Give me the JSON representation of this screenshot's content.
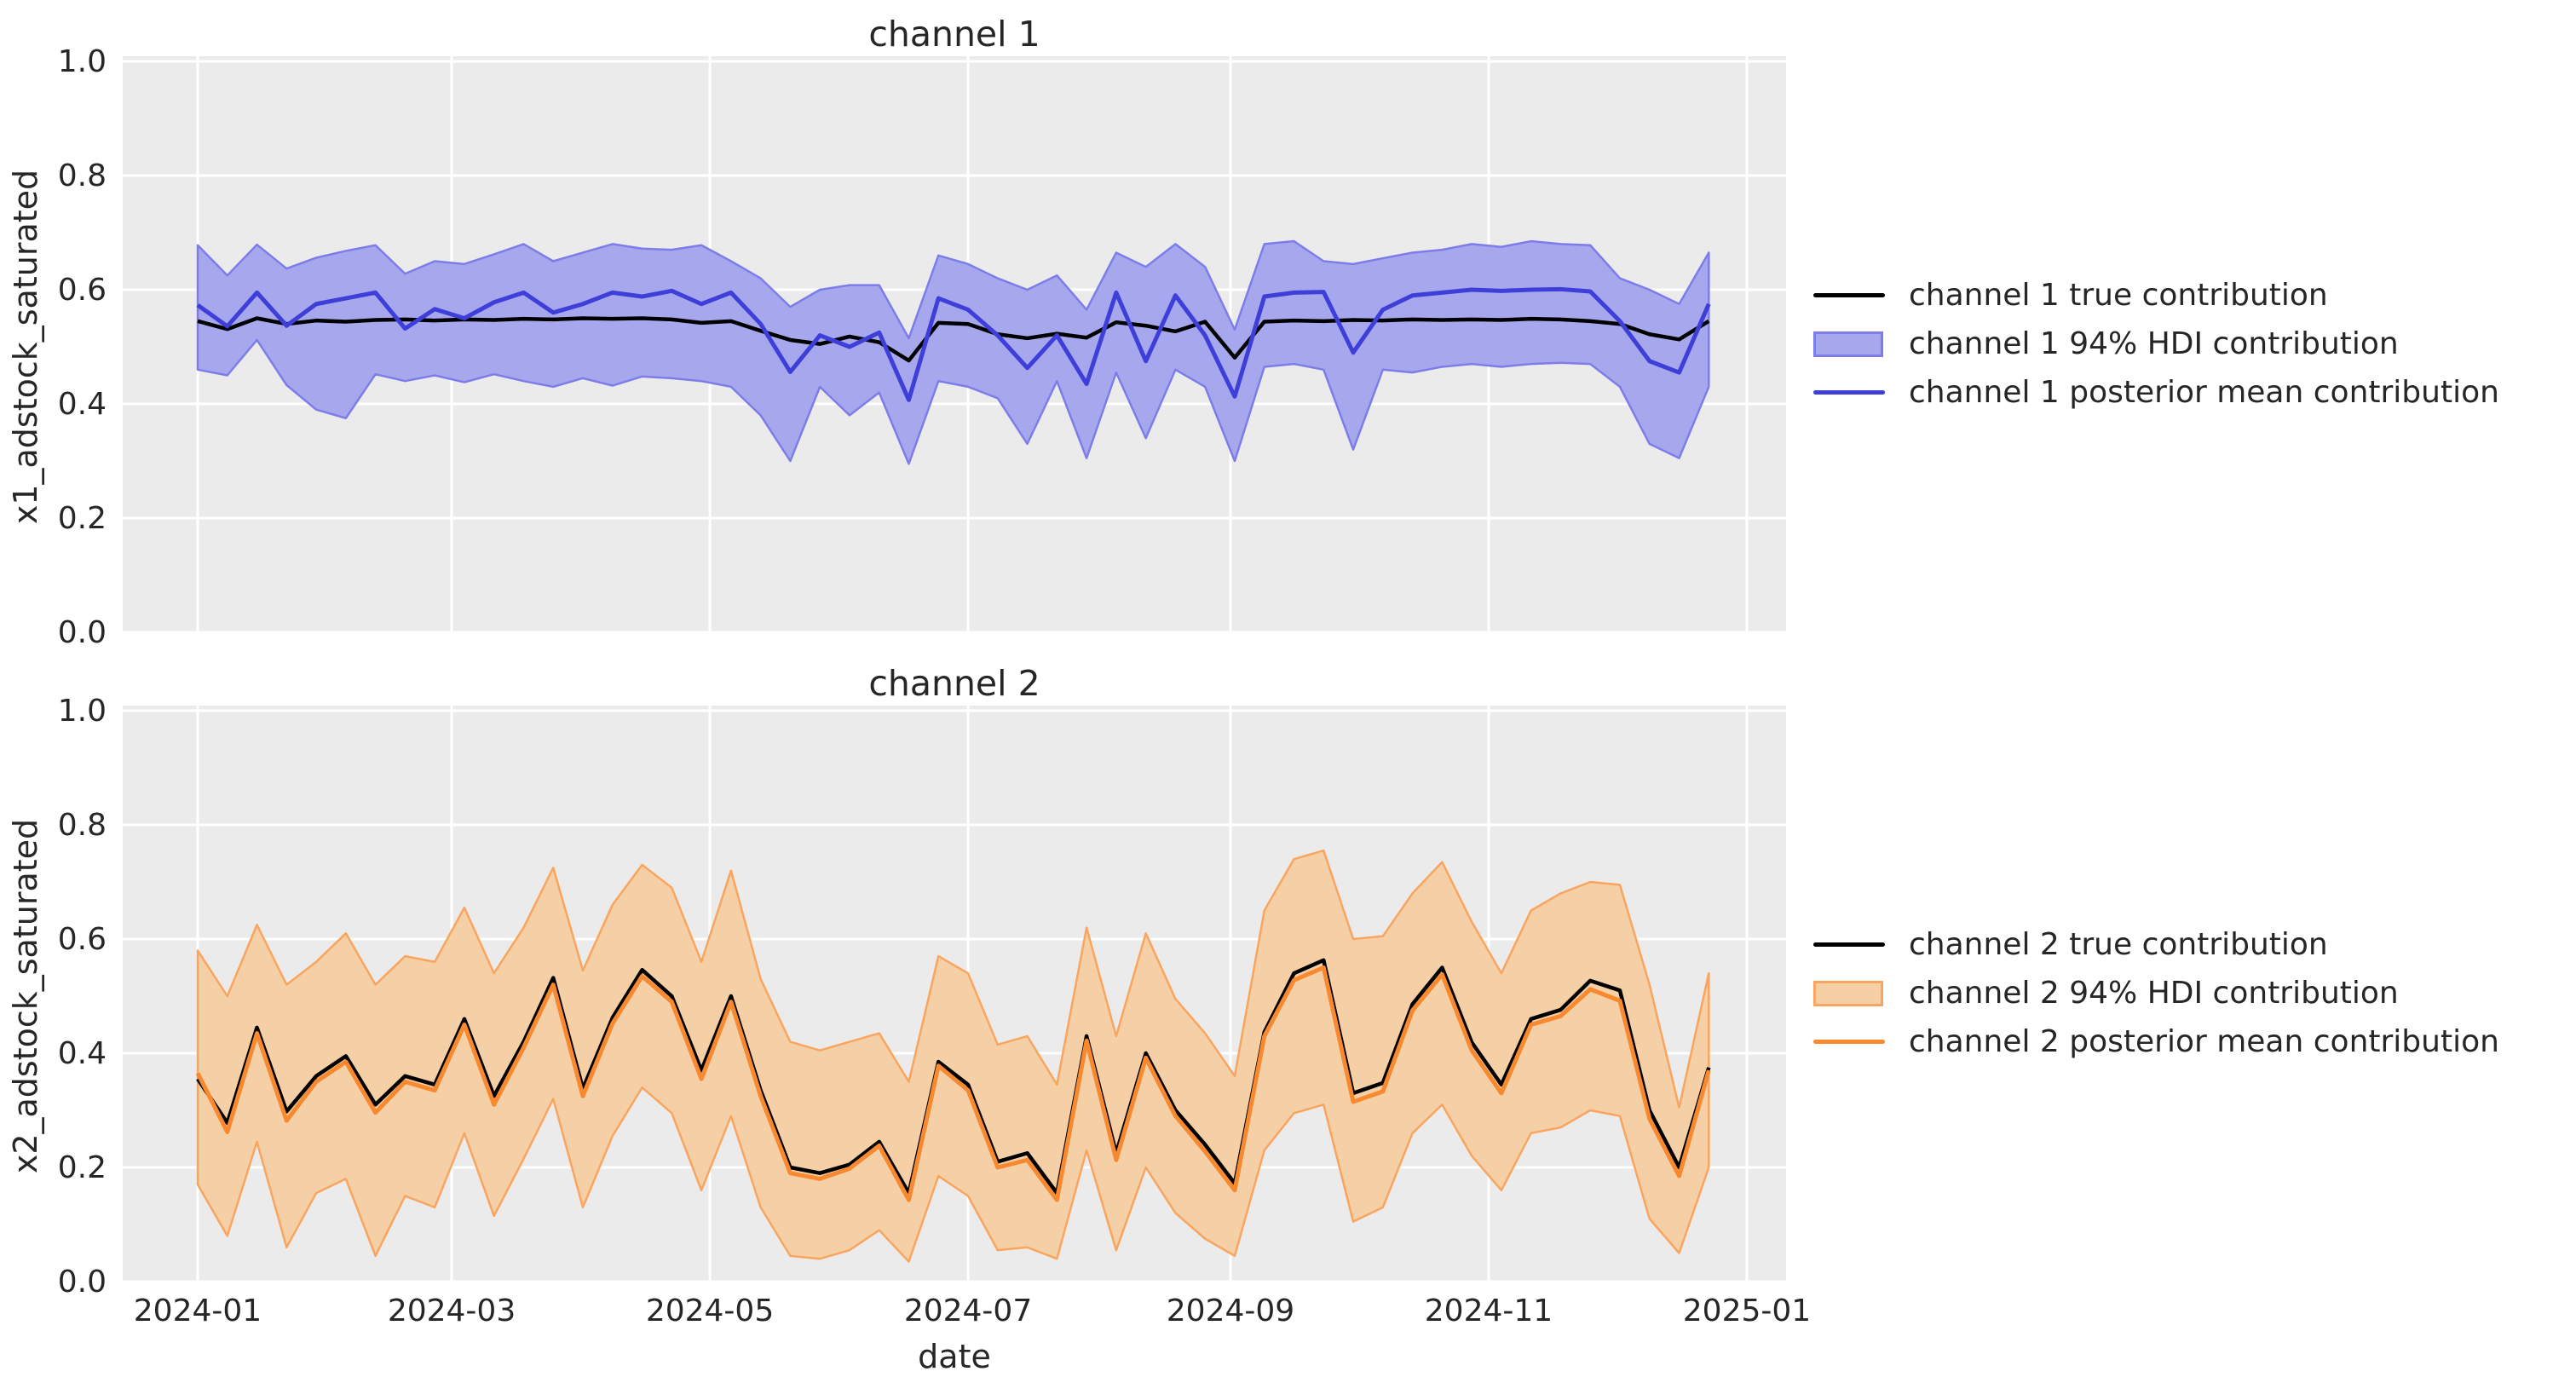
{
  "style": {
    "panel_bg": "#ebebeb",
    "grid_color": "#ffffff",
    "text_color": "#262626",
    "ch1": {
      "band_fill": "#a7a7ee",
      "band_edge": "#7d7de9",
      "mean_line": "#3e3ed9",
      "true_line": "#000000"
    },
    "ch2": {
      "band_fill": "#f5cfa5",
      "band_edge": "#f9a55f",
      "mean_line": "#f8892f",
      "true_line": "#000000"
    }
  },
  "chart_data": [
    {
      "type": "area",
      "title": "channel 1",
      "ylabel": "x1_adstock_saturated",
      "xlabel": "",
      "ylim": [
        0.0,
        1.0
      ],
      "grid": true,
      "legend_position": "right",
      "ytick_labels": [
        "0.0",
        "0.2",
        "0.4",
        "0.6",
        "0.8",
        "1.0"
      ],
      "ytick_values": [
        0.0,
        0.2,
        0.4,
        0.6,
        0.8,
        1.0
      ],
      "xtick_labels": [
        "2024-01",
        "2024-03",
        "2024-05",
        "2024-07",
        "2024-09",
        "2024-11",
        "2025-01"
      ],
      "show_xtick_labels": false,
      "legend": [
        "channel 1 true contribution",
        "channel 1 94% HDI contribution",
        "channel 1 posterior mean contribution"
      ],
      "x_dates": [
        "2024-01-01",
        "2024-01-08",
        "2024-01-15",
        "2024-01-22",
        "2024-01-29",
        "2024-02-05",
        "2024-02-12",
        "2024-02-19",
        "2024-02-26",
        "2024-03-04",
        "2024-03-11",
        "2024-03-18",
        "2024-03-25",
        "2024-04-01",
        "2024-04-08",
        "2024-04-15",
        "2024-04-22",
        "2024-04-29",
        "2024-05-06",
        "2024-05-13",
        "2024-05-20",
        "2024-05-27",
        "2024-06-03",
        "2024-06-10",
        "2024-06-17",
        "2024-06-24",
        "2024-07-01",
        "2024-07-08",
        "2024-07-15",
        "2024-07-22",
        "2024-07-29",
        "2024-08-05",
        "2024-08-12",
        "2024-08-19",
        "2024-08-26",
        "2024-09-02",
        "2024-09-09",
        "2024-09-16",
        "2024-09-23",
        "2024-09-30",
        "2024-10-07",
        "2024-10-14",
        "2024-10-21",
        "2024-10-28",
        "2024-11-04",
        "2024-11-11",
        "2024-11-18",
        "2024-11-25",
        "2024-12-02",
        "2024-12-09",
        "2024-12-16",
        "2024-12-23"
      ],
      "series": [
        {
          "name": "true_contribution",
          "values": [
            0.545,
            0.531,
            0.55,
            0.54,
            0.546,
            0.544,
            0.547,
            0.548,
            0.546,
            0.548,
            0.547,
            0.549,
            0.548,
            0.55,
            0.549,
            0.55,
            0.548,
            0.542,
            0.545,
            0.528,
            0.512,
            0.505,
            0.518,
            0.508,
            0.476,
            0.542,
            0.54,
            0.522,
            0.515,
            0.523,
            0.516,
            0.543,
            0.537,
            0.527,
            0.544,
            0.481,
            0.544,
            0.546,
            0.545,
            0.547,
            0.546,
            0.548,
            0.547,
            0.548,
            0.547,
            0.549,
            0.548,
            0.545,
            0.54,
            0.522,
            0.513,
            0.545
          ]
        },
        {
          "name": "posterior_mean_contribution",
          "values": [
            0.573,
            0.536,
            0.595,
            0.537,
            0.575,
            0.585,
            0.595,
            0.532,
            0.566,
            0.55,
            0.578,
            0.595,
            0.56,
            0.575,
            0.595,
            0.588,
            0.598,
            0.575,
            0.595,
            0.54,
            0.456,
            0.52,
            0.5,
            0.525,
            0.407,
            0.585,
            0.565,
            0.52,
            0.463,
            0.52,
            0.435,
            0.595,
            0.475,
            0.59,
            0.52,
            0.413,
            0.588,
            0.595,
            0.596,
            0.49,
            0.565,
            0.59,
            0.595,
            0.6,
            0.598,
            0.6,
            0.601,
            0.597,
            0.545,
            0.475,
            0.455,
            0.575
          ]
        },
        {
          "name": "hdi_94_low",
          "values": [
            0.46,
            0.45,
            0.512,
            0.433,
            0.39,
            0.375,
            0.452,
            0.44,
            0.45,
            0.438,
            0.452,
            0.44,
            0.43,
            0.445,
            0.432,
            0.448,
            0.445,
            0.44,
            0.43,
            0.38,
            0.3,
            0.43,
            0.38,
            0.42,
            0.295,
            0.44,
            0.43,
            0.41,
            0.33,
            0.44,
            0.305,
            0.455,
            0.34,
            0.46,
            0.43,
            0.3,
            0.465,
            0.47,
            0.46,
            0.32,
            0.46,
            0.455,
            0.465,
            0.47,
            0.465,
            0.47,
            0.472,
            0.47,
            0.43,
            0.33,
            0.305,
            0.43
          ]
        },
        {
          "name": "hdi_94_high",
          "values": [
            0.678,
            0.625,
            0.679,
            0.637,
            0.656,
            0.668,
            0.678,
            0.628,
            0.65,
            0.645,
            0.662,
            0.68,
            0.65,
            0.665,
            0.68,
            0.672,
            0.67,
            0.678,
            0.65,
            0.62,
            0.57,
            0.6,
            0.608,
            0.608,
            0.515,
            0.66,
            0.645,
            0.62,
            0.6,
            0.625,
            0.565,
            0.665,
            0.64,
            0.68,
            0.64,
            0.53,
            0.68,
            0.685,
            0.65,
            0.645,
            0.655,
            0.665,
            0.67,
            0.68,
            0.675,
            0.685,
            0.68,
            0.678,
            0.62,
            0.6,
            0.575,
            0.665
          ]
        }
      ]
    },
    {
      "type": "area",
      "title": "channel 2",
      "ylabel": "x2_adstock_saturated",
      "xlabel": "date",
      "ylim": [
        0.0,
        1.0
      ],
      "grid": true,
      "legend_position": "right",
      "ytick_labels": [
        "0.0",
        "0.2",
        "0.4",
        "0.6",
        "0.8",
        "1.0"
      ],
      "ytick_values": [
        0.0,
        0.2,
        0.4,
        0.6,
        0.8,
        1.0
      ],
      "xtick_labels": [
        "2024-01",
        "2024-03",
        "2024-05",
        "2024-07",
        "2024-09",
        "2024-11",
        "2025-01"
      ],
      "show_xtick_labels": true,
      "legend": [
        "channel 2 true contribution",
        "channel 2 94% HDI contribution",
        "channel 2 posterior mean contribution"
      ],
      "x_dates": [
        "2024-01-01",
        "2024-01-08",
        "2024-01-15",
        "2024-01-22",
        "2024-01-29",
        "2024-02-05",
        "2024-02-12",
        "2024-02-19",
        "2024-02-26",
        "2024-03-04",
        "2024-03-11",
        "2024-03-18",
        "2024-03-25",
        "2024-04-01",
        "2024-04-08",
        "2024-04-15",
        "2024-04-22",
        "2024-04-29",
        "2024-05-06",
        "2024-05-13",
        "2024-05-20",
        "2024-05-27",
        "2024-06-03",
        "2024-06-10",
        "2024-06-17",
        "2024-06-24",
        "2024-07-01",
        "2024-07-08",
        "2024-07-15",
        "2024-07-22",
        "2024-07-29",
        "2024-08-05",
        "2024-08-12",
        "2024-08-19",
        "2024-08-26",
        "2024-09-02",
        "2024-09-09",
        "2024-09-16",
        "2024-09-23",
        "2024-09-30",
        "2024-10-07",
        "2024-10-14",
        "2024-10-21",
        "2024-10-28",
        "2024-11-04",
        "2024-11-11",
        "2024-11-18",
        "2024-11-25",
        "2024-12-02",
        "2024-12-09",
        "2024-12-16",
        "2024-12-23"
      ],
      "series": [
        {
          "name": "true_contribution",
          "values": [
            0.355,
            0.278,
            0.445,
            0.298,
            0.36,
            0.395,
            0.31,
            0.36,
            0.345,
            0.46,
            0.325,
            0.42,
            0.532,
            0.338,
            0.462,
            0.546,
            0.5,
            0.37,
            0.5,
            0.335,
            0.2,
            0.19,
            0.205,
            0.245,
            0.155,
            0.385,
            0.345,
            0.21,
            0.225,
            0.155,
            0.43,
            0.225,
            0.4,
            0.3,
            0.24,
            0.172,
            0.437,
            0.54,
            0.563,
            0.33,
            0.348,
            0.486,
            0.55,
            0.419,
            0.345,
            0.46,
            0.476,
            0.527,
            0.51,
            0.3,
            0.2,
            0.375
          ]
        },
        {
          "name": "posterior_mean_contribution",
          "values": [
            0.365,
            0.262,
            0.435,
            0.282,
            0.35,
            0.385,
            0.296,
            0.35,
            0.335,
            0.45,
            0.31,
            0.41,
            0.52,
            0.325,
            0.452,
            0.535,
            0.49,
            0.355,
            0.49,
            0.325,
            0.19,
            0.18,
            0.198,
            0.238,
            0.143,
            0.378,
            0.335,
            0.2,
            0.213,
            0.143,
            0.422,
            0.213,
            0.392,
            0.29,
            0.228,
            0.16,
            0.43,
            0.528,
            0.55,
            0.315,
            0.333,
            0.475,
            0.538,
            0.405,
            0.33,
            0.45,
            0.465,
            0.512,
            0.492,
            0.285,
            0.185,
            0.37
          ]
        },
        {
          "name": "hdi_94_low",
          "values": [
            0.17,
            0.08,
            0.245,
            0.06,
            0.155,
            0.18,
            0.045,
            0.15,
            0.13,
            0.26,
            0.115,
            0.215,
            0.32,
            0.13,
            0.255,
            0.34,
            0.295,
            0.16,
            0.29,
            0.13,
            0.045,
            0.04,
            0.055,
            0.09,
            0.035,
            0.185,
            0.15,
            0.055,
            0.06,
            0.04,
            0.23,
            0.055,
            0.2,
            0.12,
            0.075,
            0.045,
            0.23,
            0.295,
            0.31,
            0.105,
            0.13,
            0.26,
            0.31,
            0.22,
            0.16,
            0.26,
            0.27,
            0.3,
            0.29,
            0.11,
            0.05,
            0.2
          ]
        },
        {
          "name": "hdi_94_high",
          "values": [
            0.58,
            0.5,
            0.625,
            0.52,
            0.56,
            0.61,
            0.52,
            0.57,
            0.56,
            0.655,
            0.54,
            0.62,
            0.725,
            0.545,
            0.66,
            0.73,
            0.69,
            0.56,
            0.72,
            0.53,
            0.42,
            0.405,
            0.42,
            0.435,
            0.35,
            0.57,
            0.54,
            0.415,
            0.43,
            0.345,
            0.62,
            0.43,
            0.61,
            0.495,
            0.435,
            0.36,
            0.65,
            0.74,
            0.755,
            0.6,
            0.605,
            0.68,
            0.735,
            0.63,
            0.54,
            0.65,
            0.68,
            0.7,
            0.695,
            0.52,
            0.305,
            0.54
          ]
        }
      ]
    }
  ]
}
